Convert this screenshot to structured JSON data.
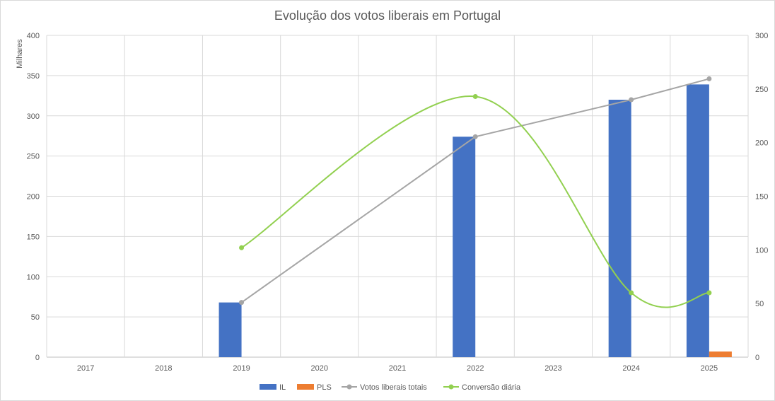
{
  "chart_data": {
    "type": "bar",
    "title": "Evolução dos votos liberais em Portugal",
    "ylabel": "Milhares",
    "categories": [
      "2017",
      "2018",
      "2019",
      "2020",
      "2021",
      "2022",
      "2023",
      "2024",
      "2025"
    ],
    "ylim": [
      0,
      400
    ],
    "yticks": [
      "0",
      "50",
      "100",
      "150",
      "200",
      "250",
      "300",
      "350",
      "400"
    ],
    "y2lim": [
      0,
      300
    ],
    "y2ticks": [
      "0",
      "50",
      "100",
      "150",
      "200",
      "250",
      "300"
    ],
    "grid": true,
    "legend_position": "bottom",
    "series": [
      {
        "name": "IL",
        "kind": "bar",
        "axis": "left",
        "color": "#4472C4",
        "values": [
          null,
          null,
          68,
          null,
          null,
          274,
          null,
          320,
          339
        ]
      },
      {
        "name": "PLS",
        "kind": "bar",
        "axis": "left",
        "color": "#ED7D31",
        "values": [
          null,
          null,
          null,
          null,
          null,
          null,
          null,
          null,
          7
        ]
      },
      {
        "name": "Votos liberais totais",
        "kind": "line",
        "axis": "left",
        "color": "#A5A5A5",
        "smooth": false,
        "values": [
          null,
          null,
          68,
          null,
          null,
          274,
          null,
          320,
          346
        ]
      },
      {
        "name": "Conversão diária",
        "kind": "line",
        "axis": "right",
        "color": "#92D050",
        "smooth": true,
        "values": [
          null,
          null,
          102,
          null,
          null,
          243,
          null,
          60,
          60
        ]
      }
    ]
  }
}
